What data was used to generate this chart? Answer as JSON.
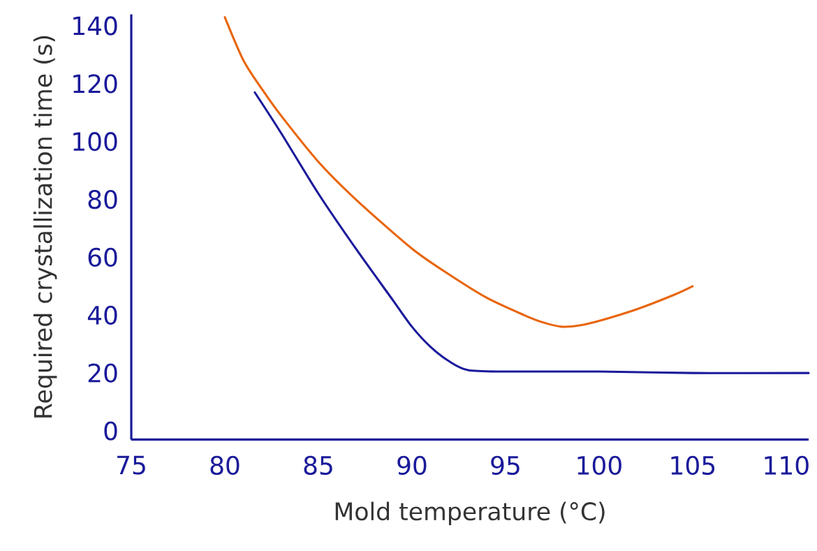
{
  "chart_data": {
    "type": "line",
    "xlabel": "Mold temperature (°C)",
    "ylabel": "Required crystallization time (s)",
    "xlim": [
      75,
      111.2
    ],
    "ylim": [
      -3,
      144
    ],
    "xticks": [
      75,
      80,
      85,
      90,
      95,
      100,
      105,
      110
    ],
    "yticks": [
      0,
      20,
      40,
      60,
      80,
      100,
      120,
      140
    ],
    "grid": false,
    "line_style": "solid",
    "series": [
      {
        "color": "#e8650a",
        "x": [
          80,
          81,
          82,
          83,
          85,
          87,
          90,
          92,
          94,
          96,
          97,
          98,
          99,
          100,
          102,
          104,
          105
        ],
        "values": [
          143,
          128,
          118,
          109,
          93,
          80,
          63,
          54,
          46,
          40,
          37.5,
          36,
          36.5,
          38,
          42,
          47,
          50
        ]
      },
      {
        "color": "#1a1a9a",
        "x": [
          81.6,
          83,
          85,
          87,
          89,
          90,
          91,
          92,
          93,
          95,
          100,
          105,
          111.2
        ],
        "values": [
          117,
          103,
          82,
          63,
          45,
          36,
          29,
          24,
          21,
          20.5,
          20.5,
          20,
          20
        ]
      }
    ]
  }
}
